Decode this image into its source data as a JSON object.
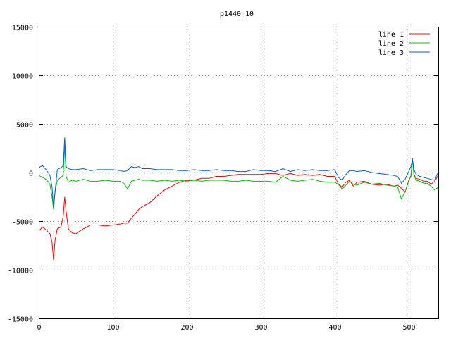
{
  "chart_data": {
    "type": "line",
    "title": "p1440_10",
    "xlabel": "",
    "ylabel": "",
    "xlim": [
      0,
      540
    ],
    "ylim": [
      -15000,
      15000
    ],
    "xticks": [
      0,
      100,
      200,
      300,
      400,
      500
    ],
    "yticks": [
      -15000,
      -10000,
      -5000,
      0,
      5000,
      10000,
      15000
    ],
    "grid": true,
    "legend_position": "top-right",
    "x": [
      0,
      5,
      10,
      15,
      18,
      20,
      22,
      25,
      30,
      33,
      35,
      37,
      40,
      45,
      50,
      60,
      70,
      80,
      90,
      100,
      110,
      115,
      120,
      125,
      130,
      135,
      140,
      150,
      160,
      170,
      180,
      190,
      200,
      210,
      220,
      230,
      240,
      250,
      260,
      270,
      280,
      290,
      300,
      310,
      320,
      330,
      340,
      350,
      360,
      370,
      380,
      390,
      400,
      405,
      410,
      415,
      420,
      425,
      430,
      440,
      450,
      460,
      470,
      480,
      485,
      490,
      495,
      500,
      503,
      505,
      507,
      510,
      515,
      520,
      525,
      530,
      535,
      540
    ],
    "series": [
      {
        "name": "line 1",
        "color": "#ff0000",
        "values": [
          -6000,
          -5600,
          -5900,
          -6300,
          -7200,
          -9000,
          -7000,
          -5800,
          -5600,
          -4500,
          -2500,
          -4000,
          -5800,
          -6200,
          -6300,
          -5800,
          -5400,
          -5400,
          -5500,
          -5400,
          -5300,
          -5200,
          -5200,
          -4700,
          -4300,
          -3800,
          -3500,
          -3100,
          -2400,
          -1800,
          -1400,
          -1000,
          -800,
          -800,
          -600,
          -600,
          -400,
          -400,
          -300,
          -200,
          -200,
          -200,
          -200,
          -100,
          -100,
          -300,
          -100,
          -300,
          -200,
          -300,
          -200,
          -400,
          -400,
          -1200,
          -1500,
          -1000,
          -800,
          -1400,
          -1000,
          -900,
          -1200,
          -1300,
          -1200,
          -1400,
          -1300,
          -1600,
          -2000,
          -800,
          -400,
          1500,
          -200,
          -600,
          -700,
          -900,
          -900,
          -1200,
          -900,
          -300
        ]
      },
      {
        "name": "line 2",
        "color": "#00c000",
        "values": [
          -300,
          -500,
          -700,
          -1200,
          -2500,
          -3800,
          -2000,
          -800,
          -500,
          -300,
          2800,
          -400,
          -1000,
          -800,
          -900,
          -700,
          -900,
          -900,
          -800,
          -900,
          -900,
          -1100,
          -1700,
          -900,
          -800,
          -700,
          -800,
          -800,
          -900,
          -800,
          -900,
          -800,
          -900,
          -800,
          -900,
          -800,
          -800,
          -800,
          -900,
          -900,
          -800,
          -900,
          -900,
          -900,
          -1000,
          -400,
          -800,
          -900,
          -800,
          -700,
          -900,
          -1000,
          -1000,
          -1200,
          -1700,
          -1300,
          -900,
          -1200,
          -1300,
          -1000,
          -1200,
          -1100,
          -1300,
          -1400,
          -1500,
          -2700,
          -2000,
          -900,
          -300,
          1300,
          -300,
          -800,
          -900,
          -1100,
          -1100,
          -1400,
          -1800,
          -1500
        ]
      },
      {
        "name": "line 3",
        "color": "#0060e0",
        "values": [
          500,
          700,
          300,
          -300,
          -1500,
          -3600,
          -2000,
          300,
          500,
          700,
          3600,
          600,
          400,
          300,
          300,
          400,
          200,
          300,
          300,
          300,
          200,
          100,
          200,
          600,
          500,
          600,
          400,
          400,
          300,
          300,
          300,
          200,
          200,
          300,
          200,
          200,
          300,
          200,
          200,
          100,
          100,
          300,
          200,
          200,
          100,
          400,
          100,
          300,
          200,
          300,
          200,
          200,
          300,
          -500,
          -800,
          -200,
          200,
          200,
          100,
          200,
          0,
          -100,
          -200,
          -300,
          -400,
          -1100,
          -700,
          100,
          600,
          1400,
          300,
          -200,
          -400,
          -500,
          -600,
          -700,
          -800,
          100
        ]
      }
    ]
  }
}
